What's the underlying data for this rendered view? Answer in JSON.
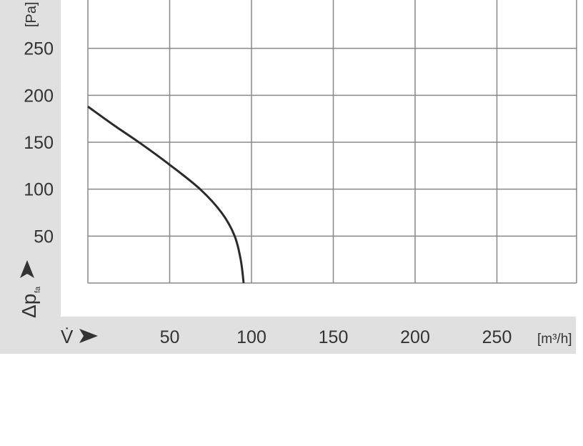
{
  "chart_data": {
    "type": "line",
    "xlabel": "V̇",
    "xunit": "[m³/h]",
    "ylabel": "Δp",
    "ylabel_sub": "fa",
    "yunit": "[Pa]",
    "xlim": [
      0,
      300
    ],
    "ylim": [
      0,
      300
    ],
    "xticks": [
      50,
      100,
      150,
      200,
      250
    ],
    "yticks": [
      50,
      100,
      150,
      200,
      250
    ],
    "grid": true,
    "series": [
      {
        "color": "#2a2a2a",
        "x": [
          0,
          16,
          32,
          50,
          68.6,
          81.7,
          89.5,
          93.4,
          95.2
        ],
        "y": [
          188,
          168,
          149,
          126,
          100,
          75,
          51,
          25,
          0
        ]
      }
    ]
  },
  "colors": {
    "band": "#e0e0e0",
    "grid": "#888888",
    "text": "#333333"
  }
}
